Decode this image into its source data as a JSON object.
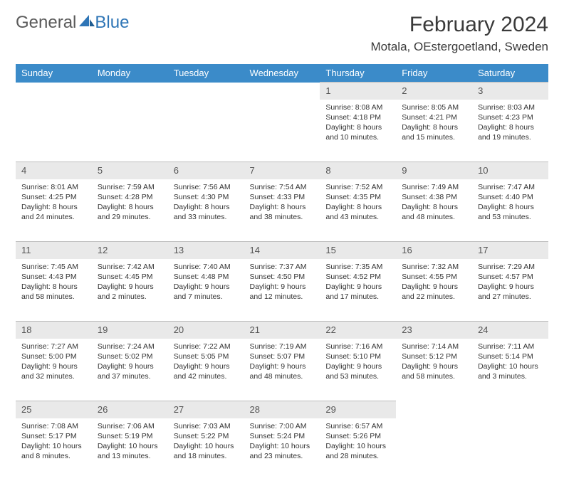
{
  "logo": {
    "text1": "General",
    "text2": "Blue"
  },
  "title": "February 2024",
  "location": "Motala, OEstergoetland, Sweden",
  "colors": {
    "header_bg": "#3b8bc9",
    "header_fg": "#ffffff",
    "daynum_bg": "#e9e9e9",
    "daynum_border": "#bdbdbd",
    "text": "#333333",
    "logo_gray": "#5a5a5a",
    "logo_blue": "#2e75b6",
    "page_bg": "#ffffff"
  },
  "day_headers": [
    "Sunday",
    "Monday",
    "Tuesday",
    "Wednesday",
    "Thursday",
    "Friday",
    "Saturday"
  ],
  "weeks": [
    [
      null,
      null,
      null,
      null,
      {
        "n": "1",
        "sr": "8:08 AM",
        "ss": "4:18 PM",
        "dl": "8 hours and 10 minutes."
      },
      {
        "n": "2",
        "sr": "8:05 AM",
        "ss": "4:21 PM",
        "dl": "8 hours and 15 minutes."
      },
      {
        "n": "3",
        "sr": "8:03 AM",
        "ss": "4:23 PM",
        "dl": "8 hours and 19 minutes."
      }
    ],
    [
      {
        "n": "4",
        "sr": "8:01 AM",
        "ss": "4:25 PM",
        "dl": "8 hours and 24 minutes."
      },
      {
        "n": "5",
        "sr": "7:59 AM",
        "ss": "4:28 PM",
        "dl": "8 hours and 29 minutes."
      },
      {
        "n": "6",
        "sr": "7:56 AM",
        "ss": "4:30 PM",
        "dl": "8 hours and 33 minutes."
      },
      {
        "n": "7",
        "sr": "7:54 AM",
        "ss": "4:33 PM",
        "dl": "8 hours and 38 minutes."
      },
      {
        "n": "8",
        "sr": "7:52 AM",
        "ss": "4:35 PM",
        "dl": "8 hours and 43 minutes."
      },
      {
        "n": "9",
        "sr": "7:49 AM",
        "ss": "4:38 PM",
        "dl": "8 hours and 48 minutes."
      },
      {
        "n": "10",
        "sr": "7:47 AM",
        "ss": "4:40 PM",
        "dl": "8 hours and 53 minutes."
      }
    ],
    [
      {
        "n": "11",
        "sr": "7:45 AM",
        "ss": "4:43 PM",
        "dl": "8 hours and 58 minutes."
      },
      {
        "n": "12",
        "sr": "7:42 AM",
        "ss": "4:45 PM",
        "dl": "9 hours and 2 minutes."
      },
      {
        "n": "13",
        "sr": "7:40 AM",
        "ss": "4:48 PM",
        "dl": "9 hours and 7 minutes."
      },
      {
        "n": "14",
        "sr": "7:37 AM",
        "ss": "4:50 PM",
        "dl": "9 hours and 12 minutes."
      },
      {
        "n": "15",
        "sr": "7:35 AM",
        "ss": "4:52 PM",
        "dl": "9 hours and 17 minutes."
      },
      {
        "n": "16",
        "sr": "7:32 AM",
        "ss": "4:55 PM",
        "dl": "9 hours and 22 minutes."
      },
      {
        "n": "17",
        "sr": "7:29 AM",
        "ss": "4:57 PM",
        "dl": "9 hours and 27 minutes."
      }
    ],
    [
      {
        "n": "18",
        "sr": "7:27 AM",
        "ss": "5:00 PM",
        "dl": "9 hours and 32 minutes."
      },
      {
        "n": "19",
        "sr": "7:24 AM",
        "ss": "5:02 PM",
        "dl": "9 hours and 37 minutes."
      },
      {
        "n": "20",
        "sr": "7:22 AM",
        "ss": "5:05 PM",
        "dl": "9 hours and 42 minutes."
      },
      {
        "n": "21",
        "sr": "7:19 AM",
        "ss": "5:07 PM",
        "dl": "9 hours and 48 minutes."
      },
      {
        "n": "22",
        "sr": "7:16 AM",
        "ss": "5:10 PM",
        "dl": "9 hours and 53 minutes."
      },
      {
        "n": "23",
        "sr": "7:14 AM",
        "ss": "5:12 PM",
        "dl": "9 hours and 58 minutes."
      },
      {
        "n": "24",
        "sr": "7:11 AM",
        "ss": "5:14 PM",
        "dl": "10 hours and 3 minutes."
      }
    ],
    [
      {
        "n": "25",
        "sr": "7:08 AM",
        "ss": "5:17 PM",
        "dl": "10 hours and 8 minutes."
      },
      {
        "n": "26",
        "sr": "7:06 AM",
        "ss": "5:19 PM",
        "dl": "10 hours and 13 minutes."
      },
      {
        "n": "27",
        "sr": "7:03 AM",
        "ss": "5:22 PM",
        "dl": "10 hours and 18 minutes."
      },
      {
        "n": "28",
        "sr": "7:00 AM",
        "ss": "5:24 PM",
        "dl": "10 hours and 23 minutes."
      },
      {
        "n": "29",
        "sr": "6:57 AM",
        "ss": "5:26 PM",
        "dl": "10 hours and 28 minutes."
      },
      null,
      null
    ]
  ],
  "labels": {
    "sunrise": "Sunrise:",
    "sunset": "Sunset:",
    "daylight": "Daylight:"
  }
}
